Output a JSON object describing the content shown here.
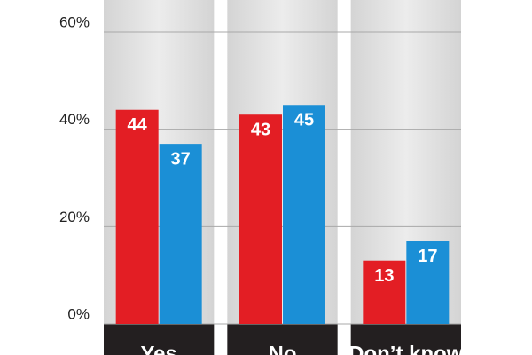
{
  "chart_data": {
    "type": "bar",
    "categories": [
      "Yes",
      "No",
      "Don’t know"
    ],
    "series": [
      {
        "color": "#e31e24",
        "values": [
          44,
          43,
          13
        ]
      },
      {
        "color": "#1b8fd6",
        "values": [
          37,
          45,
          17
        ]
      }
    ],
    "ylim": [
      0,
      60
    ],
    "yticks": [
      {
        "value": 0,
        "label": "0%"
      },
      {
        "value": 20,
        "label": "20%"
      },
      {
        "value": 40,
        "label": "40%"
      },
      {
        "value": 60,
        "label": "60%"
      }
    ],
    "grid": true
  }
}
